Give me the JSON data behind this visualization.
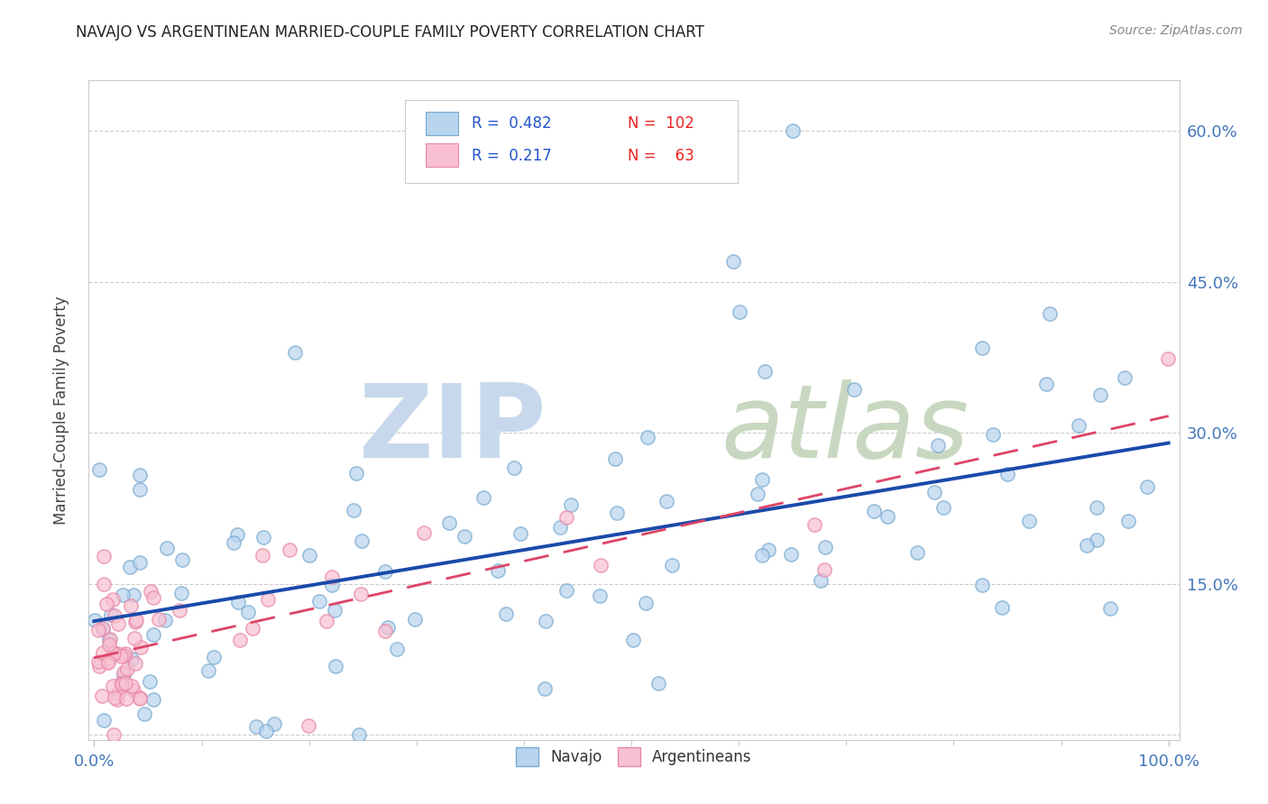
{
  "title": "NAVAJO VS ARGENTINEAN MARRIED-COUPLE FAMILY POVERTY CORRELATION CHART",
  "source": "Source: ZipAtlas.com",
  "ylabel": "Married-Couple Family Poverty",
  "legend_label1": "Navajo",
  "legend_label2": "Argentineans",
  "navajo_color": "#b8d4ee",
  "navajo_edge_color": "#7aaad0",
  "argentinean_color": "#f8c0d0",
  "argentinean_edge_color": "#e888a8",
  "trend_navajo_color": "#1a4aaa",
  "trend_argentinean_color": "#dd4466",
  "watermark_zip_color": "#c8d8ec",
  "watermark_atlas_color": "#c8d8c0",
  "background_color": "#ffffff",
  "xlim": [
    0.0,
    1.0
  ],
  "ylim": [
    0.0,
    0.65
  ],
  "ytick_positions": [
    0.0,
    0.15,
    0.3,
    0.45,
    0.6
  ],
  "ytick_labels": [
    "",
    "15.0%",
    "30.0%",
    "45.0%",
    "60.0%"
  ],
  "xtick_positions": [
    0.0,
    1.0
  ],
  "xtick_labels": [
    "0.0%",
    "100.0%"
  ],
  "navajo_trend_x0": 0.0,
  "navajo_trend_y0": 0.1,
  "navajo_trend_x1": 1.0,
  "navajo_trend_y1": 0.27,
  "arg_trend_x0": 0.0,
  "arg_trend_y0": 0.085,
  "arg_trend_x1": 1.0,
  "arg_trend_y1": 0.295
}
